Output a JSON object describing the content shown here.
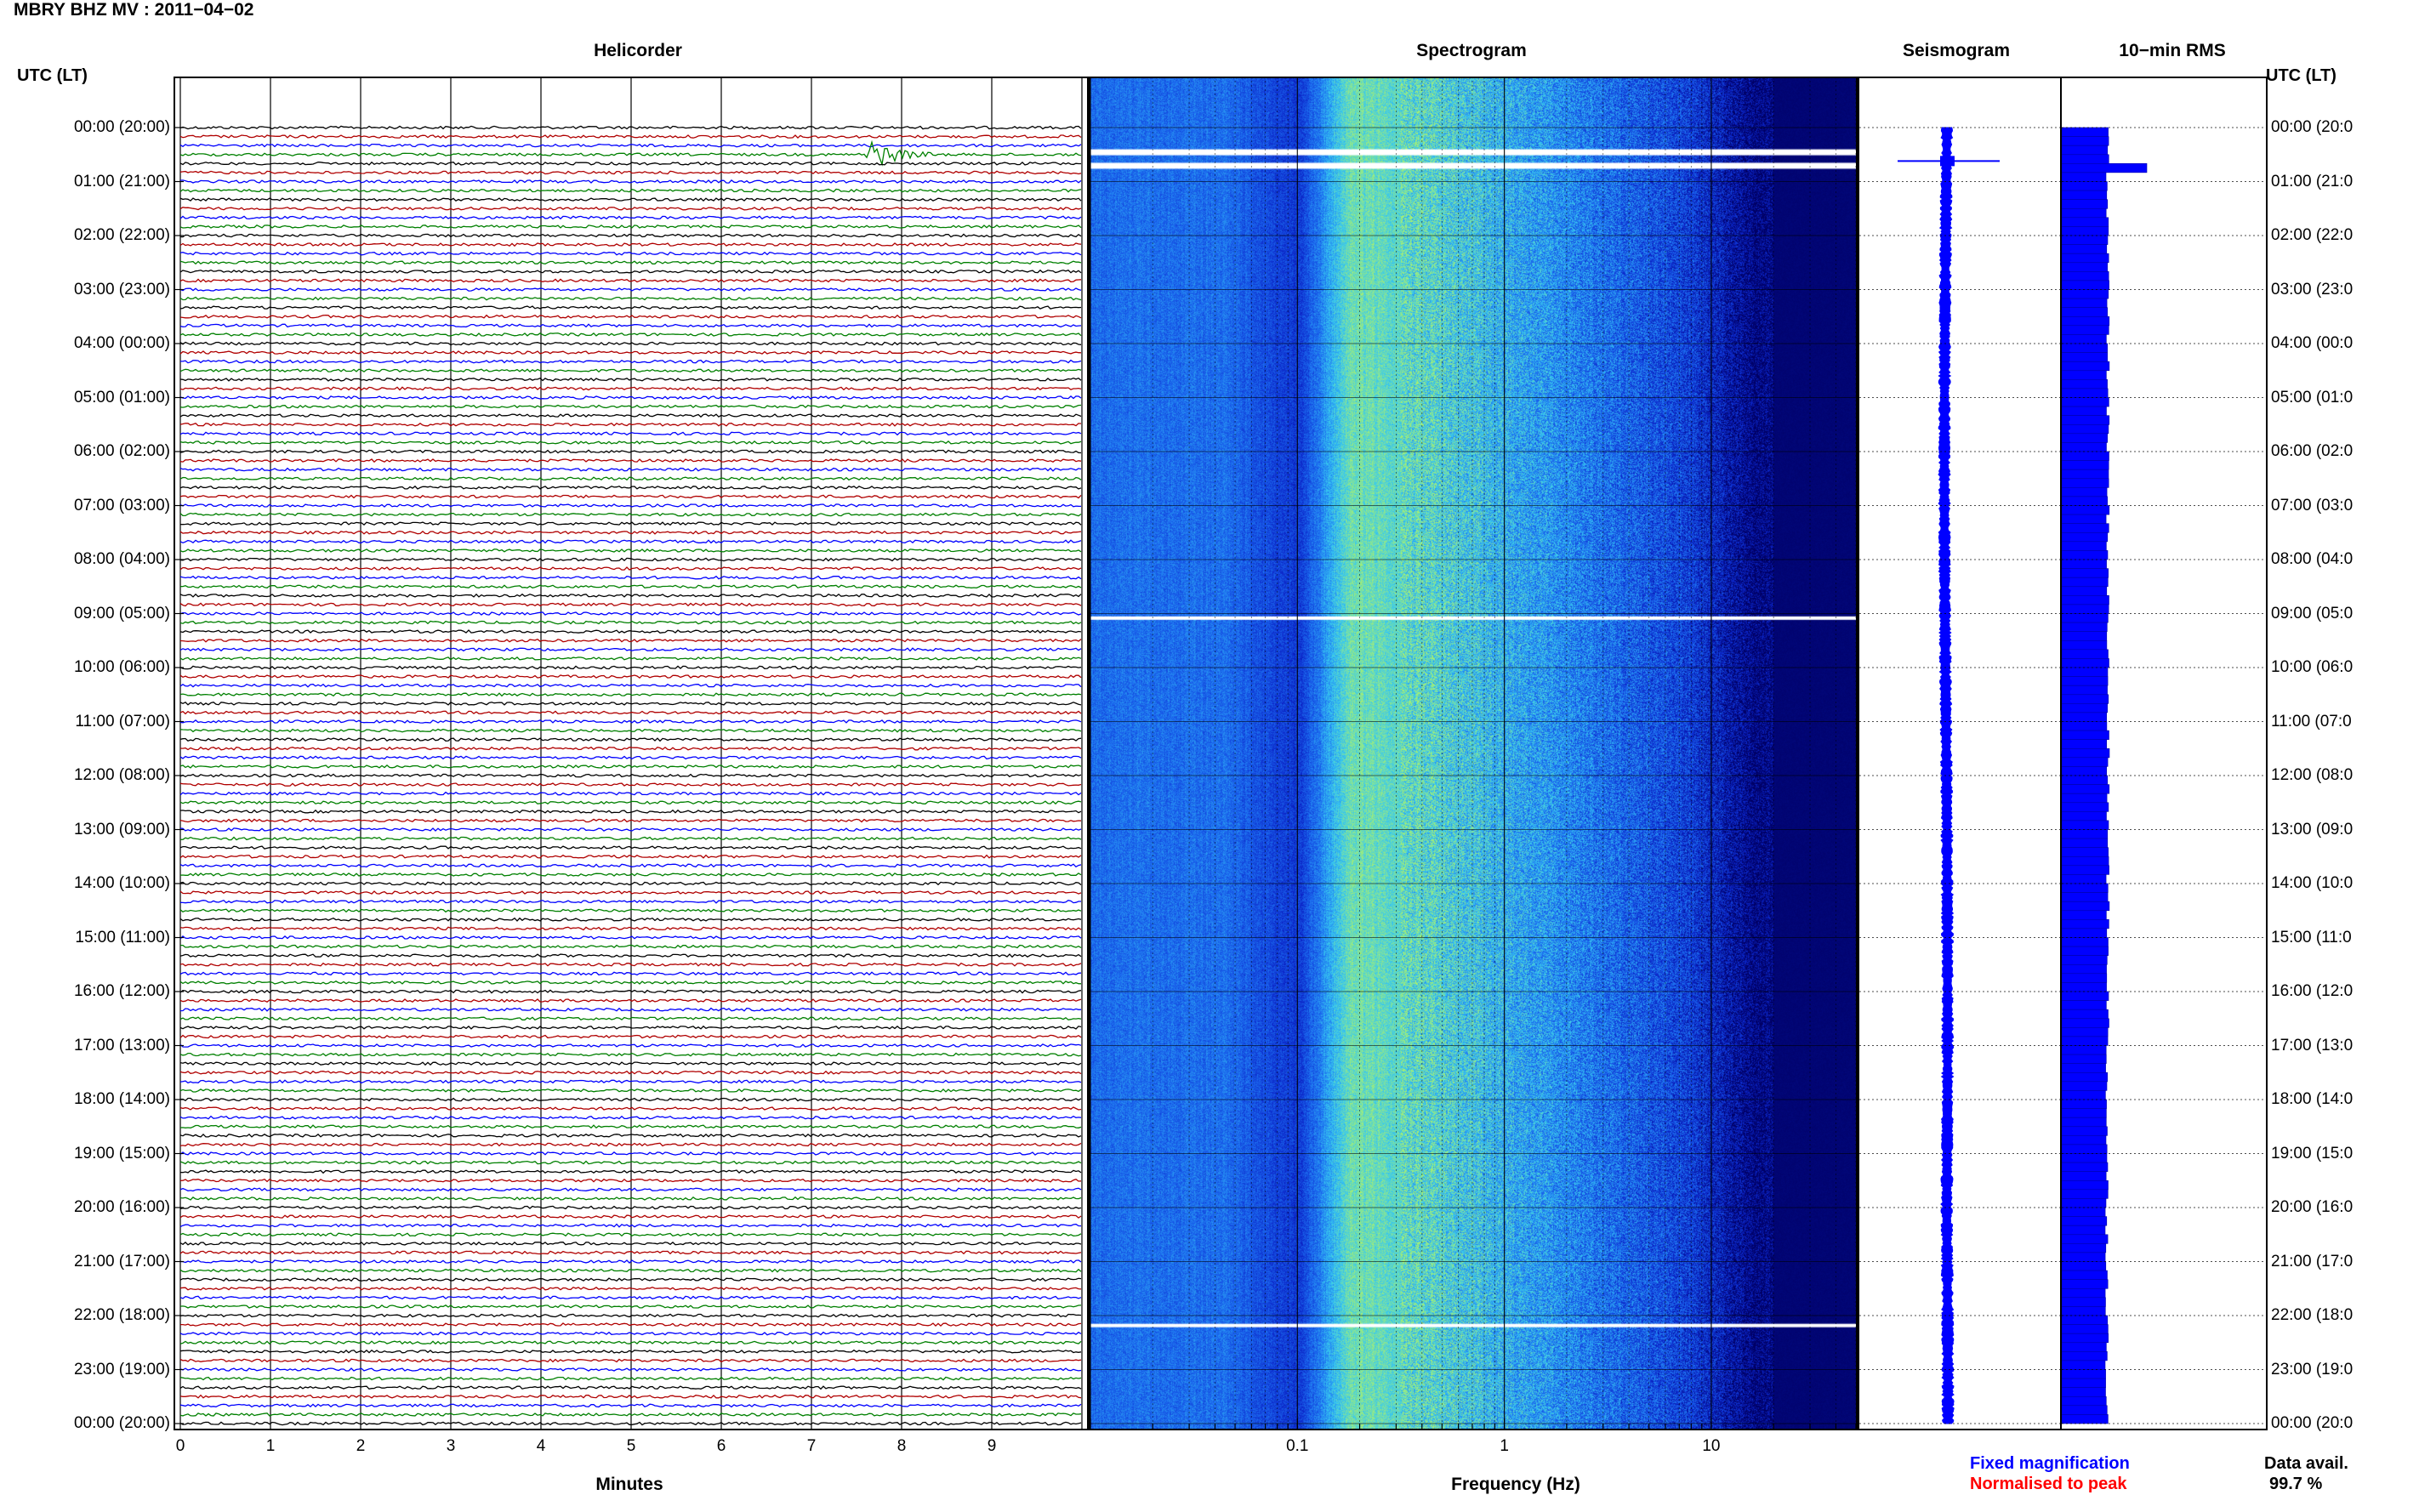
{
  "page_title": "MBRY BHZ MV : 2011−04−02",
  "left_axis_title": "UTC (LT)",
  "right_axis_title": "UTC (LT)",
  "legend": {
    "fixed": "Fixed magnification",
    "normalised": "Normalised to peak",
    "fixed_color": "#0000ff",
    "normalised_color": "#ff0000"
  },
  "data_availability": {
    "label": "Data avail.",
    "value": "99.7 %"
  },
  "chart_data": [
    {
      "type": "line",
      "title": "Helicorder",
      "xlabel": "Minutes",
      "x_ticks": [
        "0",
        "1",
        "2",
        "3",
        "4",
        "5",
        "6",
        "7",
        "8",
        "9"
      ],
      "xlim": [
        0,
        10
      ],
      "trace_colors": [
        "#000000",
        "#b00000",
        "#0000ff",
        "#008000"
      ],
      "rows_per_hour": 6,
      "event": {
        "hour": 0,
        "row": 3,
        "minute": 7.6
      }
    },
    {
      "type": "heatmap",
      "title": "Spectrogram",
      "xlabel": "Frequency (Hz)",
      "x_scale": "log",
      "x_ticks": [
        "0.1",
        "1",
        "10"
      ],
      "xlim": [
        0.01,
        50
      ],
      "colormap": [
        "#000066",
        "#0b24c8",
        "#1c6cf0",
        "#37c8f0",
        "#a8f070"
      ],
      "gap_hours": [
        0.45,
        0.7,
        9.1,
        22.2
      ]
    },
    {
      "type": "line",
      "title": "Seismogram",
      "color": "#0000ff",
      "event_hour": 0.62
    },
    {
      "type": "bar",
      "title": "10−min RMS",
      "color": "#0000ff",
      "event_hour": 0.6,
      "baseline": 0.54,
      "peak": 1.0
    }
  ],
  "y_axis": {
    "left_labels": [
      "00:00 (20:00)",
      "01:00 (21:00)",
      "02:00 (22:00)",
      "03:00 (23:00)",
      "04:00 (00:00)",
      "05:00 (01:00)",
      "06:00 (02:00)",
      "07:00 (03:00)",
      "08:00 (04:00)",
      "09:00 (05:00)",
      "10:00 (06:00)",
      "11:00 (07:00)",
      "12:00 (08:00)",
      "13:00 (09:00)",
      "14:00 (10:00)",
      "15:00 (11:00)",
      "16:00 (12:00)",
      "17:00 (13:00)",
      "18:00 (14:00)",
      "19:00 (15:00)",
      "20:00 (16:00)",
      "21:00 (17:00)",
      "22:00 (18:00)",
      "23:00 (19:00)",
      "00:00 (20:00)"
    ],
    "right_labels": [
      "00:00 (20:0",
      "01:00 (21:0",
      "02:00 (22:0",
      "03:00 (23:0",
      "04:00 (00:0",
      "05:00 (01:0",
      "06:00 (02:0",
      "07:00 (03:0",
      "08:00 (04:0",
      "09:00 (05:0",
      "10:00 (06:0",
      "11:00 (07:0",
      "12:00 (08:0",
      "13:00 (09:0",
      "14:00 (10:0",
      "15:00 (11:0",
      "16:00 (12:0",
      "17:00 (13:0",
      "18:00 (14:0",
      "19:00 (15:0",
      "20:00 (16:0",
      "21:00 (17:0",
      "22:00 (18:0",
      "23:00 (19:0",
      "00:00 (20:0"
    ]
  }
}
